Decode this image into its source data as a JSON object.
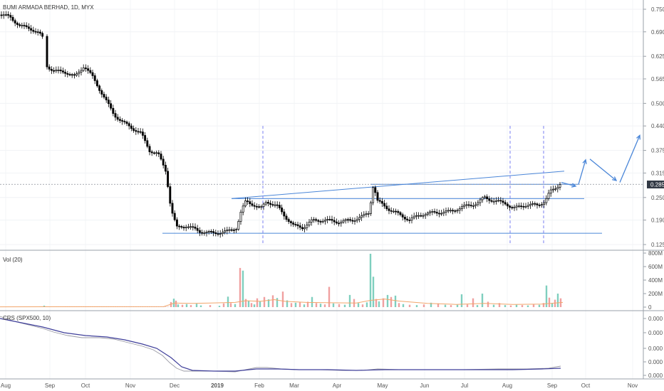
{
  "chart_data": {
    "type": "candlestick",
    "title": "BUMI ARMADA BERHAD, 1D, MYX",
    "current_price": "0.285",
    "price_axis_ticks": [
      "0.750",
      "0.690",
      "0.625",
      "0.565",
      "0.500",
      "0.440",
      "0.375",
      "0.315",
      "0.250",
      "0.190",
      "0.125"
    ],
    "time_axis_ticks": [
      "Aug",
      "Sep",
      "Oct",
      "Nov",
      "Dec",
      "2019",
      "Feb",
      "Mar",
      "Apr",
      "May",
      "Jun",
      "Jul",
      "Aug",
      "Sep",
      "Oct",
      "Nov"
    ],
    "price_path": [
      [
        0,
        0.735
      ],
      [
        14,
        0.73
      ],
      [
        28,
        0.705
      ],
      [
        42,
        0.7
      ],
      [
        55,
        0.685
      ],
      [
        62,
        0.67
      ],
      [
        66,
        0.6
      ],
      [
        75,
        0.585
      ],
      [
        90,
        0.585
      ],
      [
        105,
        0.57
      ],
      [
        118,
        0.6
      ],
      [
        130,
        0.57
      ],
      [
        145,
        0.52
      ],
      [
        160,
        0.47
      ],
      [
        172,
        0.45
      ],
      [
        185,
        0.435
      ],
      [
        198,
        0.42
      ],
      [
        210,
        0.375
      ],
      [
        222,
        0.365
      ],
      [
        233,
        0.32
      ],
      [
        240,
        0.22
      ],
      [
        248,
        0.17
      ],
      [
        262,
        0.175
      ],
      [
        280,
        0.16
      ],
      [
        300,
        0.155
      ],
      [
        320,
        0.16
      ],
      [
        332,
        0.17
      ],
      [
        338,
        0.21
      ],
      [
        345,
        0.24
      ],
      [
        355,
        0.232
      ],
      [
        366,
        0.22
      ],
      [
        374,
        0.24
      ],
      [
        380,
        0.235
      ],
      [
        390,
        0.225
      ],
      [
        400,
        0.2
      ],
      [
        412,
        0.175
      ],
      [
        425,
        0.17
      ],
      [
        438,
        0.188
      ],
      [
        455,
        0.19
      ],
      [
        475,
        0.185
      ],
      [
        495,
        0.19
      ],
      [
        510,
        0.2
      ],
      [
        518,
        0.21
      ],
      [
        524,
        0.285
      ],
      [
        530,
        0.24
      ],
      [
        545,
        0.22
      ],
      [
        560,
        0.205
      ],
      [
        575,
        0.19
      ],
      [
        590,
        0.205
      ],
      [
        610,
        0.21
      ],
      [
        630,
        0.212
      ],
      [
        650,
        0.225
      ],
      [
        670,
        0.235
      ],
      [
        680,
        0.25
      ],
      [
        695,
        0.24
      ],
      [
        710,
        0.235
      ],
      [
        720,
        0.22
      ],
      [
        735,
        0.23
      ],
      [
        755,
        0.23
      ],
      [
        765,
        0.24
      ],
      [
        772,
        0.265
      ],
      [
        780,
        0.275
      ],
      [
        787,
        0.29
      ]
    ],
    "annotations": {
      "support": 0.155,
      "mid_resistance": 0.247,
      "upper_level": 0.285,
      "rising_trendline": [
        [
          325,
          0.247
        ],
        [
          792,
          0.32
        ]
      ],
      "projection_arrows": [
        [
          [
            788,
            0.29
          ],
          [
            808,
            0.28
          ]
        ],
        [
          [
            812,
            0.285
          ],
          [
            822,
            0.35
          ]
        ],
        [
          [
            828,
            0.352
          ],
          [
            865,
            0.295
          ]
        ],
        [
          [
            870,
            0.29
          ],
          [
            898,
            0.415
          ]
        ]
      ],
      "vertical_markers": [
        369,
        716,
        763
      ]
    },
    "volume": {
      "title": "Vol (20)",
      "axis_ticks": [
        "800M",
        "600M",
        "400M",
        "200M",
        "0"
      ],
      "axis_values": [
        800,
        600,
        400,
        200,
        0
      ],
      "bars": [
        [
          62,
          22,
          "g"
        ],
        [
          240,
          75,
          "r"
        ],
        [
          244,
          125,
          "g"
        ],
        [
          247,
          95,
          "r"
        ],
        [
          250,
          40,
          "g"
        ],
        [
          256,
          35,
          "r"
        ],
        [
          262,
          45,
          "g"
        ],
        [
          268,
          30,
          "r"
        ],
        [
          276,
          50,
          "g"
        ],
        [
          282,
          25,
          "g"
        ],
        [
          295,
          30,
          "r"
        ],
        [
          308,
          20,
          "g"
        ],
        [
          314,
          55,
          "r"
        ],
        [
          320,
          155,
          "g"
        ],
        [
          324,
          60,
          "r"
        ],
        [
          330,
          45,
          "g"
        ],
        [
          337,
          580,
          "r"
        ],
        [
          341,
          540,
          "g"
        ],
        [
          345,
          120,
          "r"
        ],
        [
          349,
          90,
          "g"
        ],
        [
          353,
          60,
          "r"
        ],
        [
          357,
          40,
          "g"
        ],
        [
          361,
          130,
          "r"
        ],
        [
          365,
          85,
          "g"
        ],
        [
          371,
          150,
          "r"
        ],
        [
          377,
          115,
          "g"
        ],
        [
          383,
          175,
          "r"
        ],
        [
          389,
          135,
          "g"
        ],
        [
          397,
          230,
          "r"
        ],
        [
          403,
          100,
          "g"
        ],
        [
          409,
          60,
          "r"
        ],
        [
          415,
          65,
          "g"
        ],
        [
          421,
          70,
          "r"
        ],
        [
          427,
          40,
          "g"
        ],
        [
          432,
          80,
          "r"
        ],
        [
          438,
          150,
          "g"
        ],
        [
          444,
          60,
          "r"
        ],
        [
          450,
          50,
          "g"
        ],
        [
          456,
          40,
          "r"
        ],
        [
          462,
          300,
          "r"
        ],
        [
          468,
          55,
          "g"
        ],
        [
          476,
          45,
          "r"
        ],
        [
          484,
          35,
          "g"
        ],
        [
          491,
          180,
          "g"
        ],
        [
          497,
          120,
          "r"
        ],
        [
          503,
          60,
          "g"
        ],
        [
          509,
          40,
          "r"
        ],
        [
          515,
          70,
          "g"
        ],
        [
          520,
          790,
          "g"
        ],
        [
          524,
          450,
          "g"
        ],
        [
          528,
          120,
          "r"
        ],
        [
          532,
          85,
          "g"
        ],
        [
          538,
          130,
          "r"
        ],
        [
          544,
          180,
          "g"
        ],
        [
          549,
          150,
          "r"
        ],
        [
          555,
          170,
          "g"
        ],
        [
          560,
          60,
          "r"
        ],
        [
          566,
          45,
          "g"
        ],
        [
          575,
          35,
          "r"
        ],
        [
          585,
          30,
          "g"
        ],
        [
          595,
          40,
          "r"
        ],
        [
          605,
          65,
          "g"
        ],
        [
          615,
          55,
          "r"
        ],
        [
          625,
          35,
          "g"
        ],
        [
          633,
          30,
          "r"
        ],
        [
          642,
          35,
          "g"
        ],
        [
          648,
          190,
          "g"
        ],
        [
          656,
          40,
          "r"
        ],
        [
          664,
          130,
          "r"
        ],
        [
          670,
          30,
          "g"
        ],
        [
          677,
          200,
          "g"
        ],
        [
          685,
          80,
          "r"
        ],
        [
          693,
          35,
          "g"
        ],
        [
          701,
          60,
          "r"
        ],
        [
          709,
          30,
          "g"
        ],
        [
          717,
          25,
          "r"
        ],
        [
          725,
          35,
          "g"
        ],
        [
          733,
          30,
          "r"
        ],
        [
          741,
          25,
          "g"
        ],
        [
          749,
          40,
          "r"
        ],
        [
          757,
          35,
          "g"
        ],
        [
          763,
          60,
          "r"
        ],
        [
          767,
          320,
          "g"
        ],
        [
          771,
          140,
          "r"
        ],
        [
          775,
          60,
          "g"
        ],
        [
          779,
          110,
          "r"
        ],
        [
          783,
          200,
          "g"
        ],
        [
          787,
          130,
          "r"
        ]
      ],
      "ma_path": [
        [
          0,
          4
        ],
        [
          230,
          8
        ],
        [
          245,
          60
        ],
        [
          270,
          55
        ],
        [
          295,
          60
        ],
        [
          330,
          70
        ],
        [
          345,
          95
        ],
        [
          365,
          85
        ],
        [
          385,
          110
        ],
        [
          400,
          85
        ],
        [
          430,
          70
        ],
        [
          465,
          65
        ],
        [
          500,
          60
        ],
        [
          520,
          100
        ],
        [
          540,
          120
        ],
        [
          560,
          90
        ],
        [
          600,
          55
        ],
        [
          640,
          40
        ],
        [
          680,
          55
        ],
        [
          720,
          40
        ],
        [
          760,
          45
        ],
        [
          790,
          70
        ]
      ]
    },
    "crs": {
      "title": "CRS (SPX500, 10)",
      "axis_ticks": [
        "0.000",
        "0.000",
        "0.000",
        "0.000",
        "0.000"
      ],
      "line_path": [
        [
          0,
          445
        ],
        [
          20,
          452
        ],
        [
          40,
          457
        ],
        [
          60,
          462
        ],
        [
          75,
          467
        ],
        [
          95,
          472
        ],
        [
          115,
          475
        ],
        [
          140,
          475
        ],
        [
          160,
          477
        ],
        [
          180,
          482
        ],
        [
          200,
          487
        ],
        [
          215,
          492
        ],
        [
          228,
          500
        ],
        [
          238,
          510
        ],
        [
          248,
          518
        ],
        [
          258,
          522
        ],
        [
          275,
          522
        ],
        [
          300,
          522
        ],
        [
          330,
          523
        ],
        [
          345,
          520
        ],
        [
          360,
          517
        ],
        [
          375,
          517
        ],
        [
          395,
          519
        ],
        [
          420,
          520
        ],
        [
          450,
          520
        ],
        [
          480,
          521
        ],
        [
          510,
          521
        ],
        [
          530,
          519
        ],
        [
          560,
          520
        ],
        [
          600,
          520
        ],
        [
          650,
          520
        ],
        [
          700,
          519
        ],
        [
          740,
          519
        ],
        [
          770,
          518
        ],
        [
          787,
          515
        ]
      ],
      "ma_path": [
        [
          0,
          448
        ],
        [
          30,
          454
        ],
        [
          60,
          460
        ],
        [
          90,
          468
        ],
        [
          120,
          472
        ],
        [
          150,
          474
        ],
        [
          175,
          478
        ],
        [
          200,
          484
        ],
        [
          220,
          490
        ],
        [
          240,
          503
        ],
        [
          255,
          516
        ],
        [
          270,
          521
        ],
        [
          300,
          522
        ],
        [
          330,
          522
        ],
        [
          360,
          519
        ],
        [
          390,
          519
        ],
        [
          420,
          520
        ],
        [
          460,
          520
        ],
        [
          500,
          521
        ],
        [
          540,
          520
        ],
        [
          600,
          520
        ],
        [
          660,
          520
        ],
        [
          720,
          520
        ],
        [
          760,
          519
        ],
        [
          787,
          518
        ]
      ]
    }
  }
}
